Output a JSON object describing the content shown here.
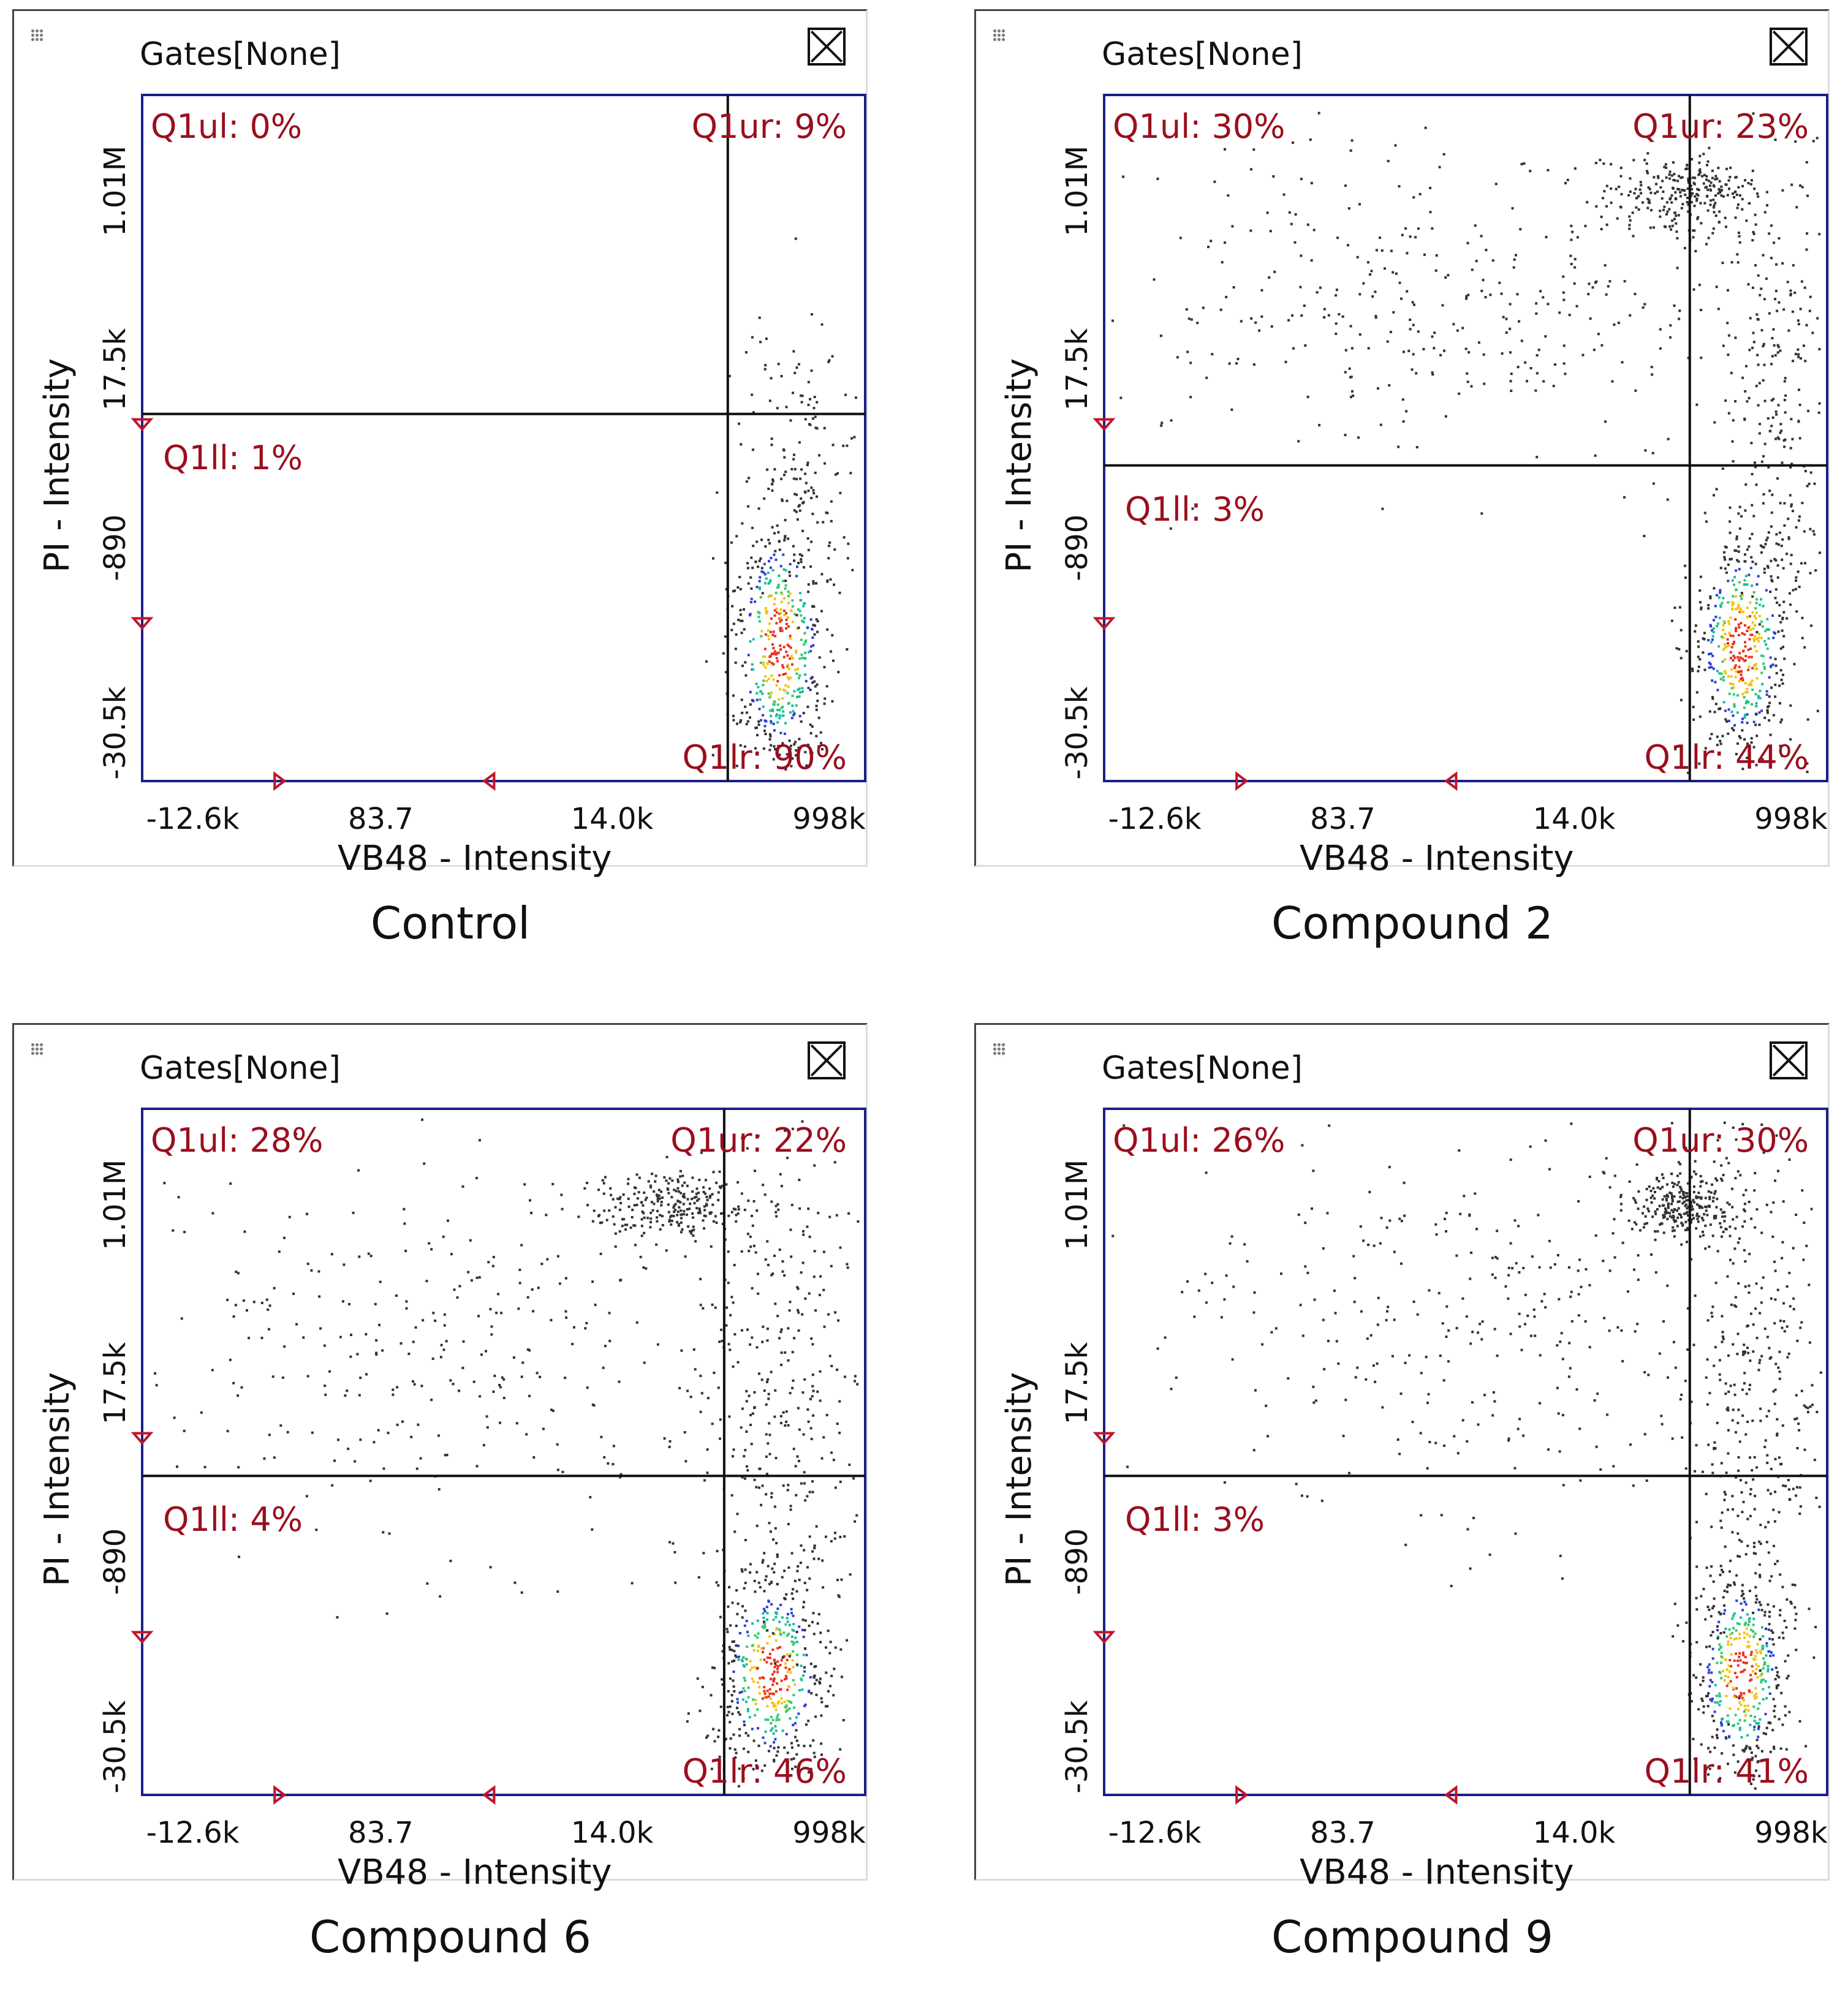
{
  "colors": {
    "axis": "#1d1f86",
    "label": "#9a0f1e",
    "text": "#111111"
  },
  "chart_data": [
    {
      "type": "scatter",
      "title": "Control",
      "gate_label": "Gates[None]",
      "xlabel": "VB48 - Intensity",
      "ylabel": "PI - Intensity",
      "xticks": [
        "-12.6k",
        "83.7",
        "14.0k",
        "998k"
      ],
      "yticks": [
        "-30.5k",
        "-890",
        "17.5k",
        "1.01M"
      ],
      "quadrants": {
        "ul": "Q1ul: 0%",
        "ur": "Q1ur: 9%",
        "ll": "Q1ll: 1%",
        "lr": "Q1lr: 90%"
      },
      "percent": {
        "ul": 0,
        "ur": 9,
        "ll": 1,
        "lr": 90
      },
      "gate": {
        "x": 0.81,
        "y": 0.465
      },
      "populations": [
        {
          "x": 0.88,
          "y": 0.8,
          "sx": 0.035,
          "sy": 0.1,
          "n": 520,
          "hot": true
        },
        {
          "x": 0.91,
          "y": 0.55,
          "sx": 0.04,
          "sy": 0.12,
          "n": 140,
          "hot": false
        }
      ]
    },
    {
      "type": "scatter",
      "title": "Compound 2",
      "gate_label": "Gates[None]",
      "xlabel": "VB48 - Intensity",
      "ylabel": "PI - Intensity",
      "xticks": [
        "-12.6k",
        "83.7",
        "14.0k",
        "998k"
      ],
      "yticks": [
        "-30.5k",
        "-890",
        "17.5k",
        "1.01M"
      ],
      "quadrants": {
        "ul": "Q1ul: 30%",
        "ur": "Q1ur: 23%",
        "ll": "Q1ll: 3%",
        "lr": "Q1lr: 44%"
      },
      "percent": {
        "ul": 30,
        "ur": 23,
        "ll": 3,
        "lr": 44
      },
      "gate": {
        "x": 0.81,
        "y": 0.54
      },
      "populations": [
        {
          "x": 0.88,
          "y": 0.8,
          "sx": 0.035,
          "sy": 0.09,
          "n": 480,
          "hot": true
        },
        {
          "x": 0.8,
          "y": 0.14,
          "sx": 0.05,
          "sy": 0.03,
          "n": 260,
          "hot": false
        },
        {
          "x": 0.5,
          "y": 0.3,
          "sx": 0.25,
          "sy": 0.12,
          "n": 380,
          "hot": false
        },
        {
          "x": 0.93,
          "y": 0.45,
          "sx": 0.04,
          "sy": 0.18,
          "n": 260,
          "hot": false
        }
      ]
    },
    {
      "type": "scatter",
      "title": "Compound 6",
      "gate_label": "Gates[None]",
      "xlabel": "VB48 - Intensity",
      "ylabel": "PI - Intensity",
      "xticks": [
        "-12.6k",
        "83.7",
        "14.0k",
        "998k"
      ],
      "yticks": [
        "-30.5k",
        "-890",
        "17.5k",
        "1.01M"
      ],
      "quadrants": {
        "ul": "Q1ul: 28%",
        "ur": "Q1ur: 22%",
        "ll": "Q1ll: 4%",
        "lr": "Q1lr: 46%"
      },
      "percent": {
        "ul": 28,
        "ur": 22,
        "ll": 4,
        "lr": 46
      },
      "gate": {
        "x": 0.805,
        "y": 0.535
      },
      "populations": [
        {
          "x": 0.87,
          "y": 0.82,
          "sx": 0.04,
          "sy": 0.08,
          "n": 470,
          "hot": true
        },
        {
          "x": 0.72,
          "y": 0.14,
          "sx": 0.06,
          "sy": 0.025,
          "n": 250,
          "hot": false
        },
        {
          "x": 0.45,
          "y": 0.35,
          "sx": 0.28,
          "sy": 0.15,
          "n": 380,
          "hot": false
        },
        {
          "x": 0.88,
          "y": 0.42,
          "sx": 0.06,
          "sy": 0.2,
          "n": 320,
          "hot": false
        }
      ]
    },
    {
      "type": "scatter",
      "title": "Compound 9",
      "gate_label": "Gates[None]",
      "xlabel": "VB48 - Intensity",
      "ylabel": "PI - Intensity",
      "xticks": [
        "-12.6k",
        "83.7",
        "14.0k",
        "998k"
      ],
      "yticks": [
        "-30.5k",
        "-890",
        "17.5k",
        "1.01M"
      ],
      "quadrants": {
        "ul": "Q1ul: 26%",
        "ur": "Q1ur: 30%",
        "ll": "Q1ll: 3%",
        "lr": "Q1lr: 41%"
      },
      "percent": {
        "ul": 26,
        "ur": 30,
        "ll": 3,
        "lr": 41
      },
      "gate": {
        "x": 0.81,
        "y": 0.535
      },
      "populations": [
        {
          "x": 0.88,
          "y": 0.82,
          "sx": 0.035,
          "sy": 0.08,
          "n": 440,
          "hot": true
        },
        {
          "x": 0.8,
          "y": 0.14,
          "sx": 0.04,
          "sy": 0.025,
          "n": 260,
          "hot": false
        },
        {
          "x": 0.55,
          "y": 0.3,
          "sx": 0.25,
          "sy": 0.14,
          "n": 380,
          "hot": false
        },
        {
          "x": 0.9,
          "y": 0.42,
          "sx": 0.05,
          "sy": 0.2,
          "n": 320,
          "hot": false
        }
      ]
    }
  ]
}
